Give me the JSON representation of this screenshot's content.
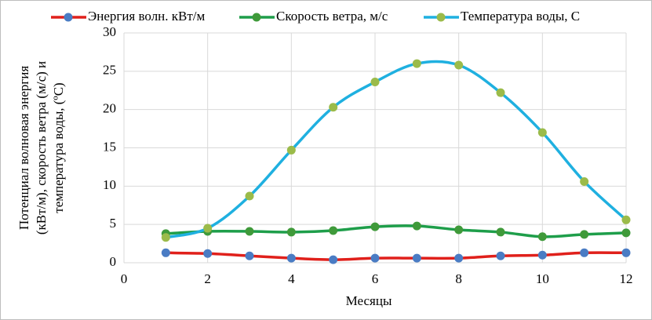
{
  "chart_data": {
    "type": "line",
    "x_label": "Месяцы",
    "y_label": [
      "Потенциал волновая энергия",
      "(кВт/м), скорость ветра (м/с) и",
      "температура воды, (ºС)"
    ],
    "x": [
      1,
      2,
      3,
      4,
      5,
      6,
      7,
      8,
      9,
      10,
      11,
      12
    ],
    "series": [
      {
        "name": "Энергия волн. кВт/м",
        "color": "#e0201b",
        "marker_color": "#4a7cc4",
        "values": [
          1.3,
          1.2,
          0.9,
          0.6,
          0.4,
          0.6,
          0.6,
          0.6,
          0.9,
          1.0,
          1.3,
          1.3
        ]
      },
      {
        "name": "Скорость ветра, м/с",
        "color": "#1e9e4a",
        "marker_color": "#3f9a3a",
        "values": [
          3.8,
          4.1,
          4.1,
          4.0,
          4.2,
          4.7,
          4.8,
          4.3,
          4.0,
          3.4,
          3.7,
          3.9
        ]
      },
      {
        "name": "Температура воды, С",
        "color": "#1fb0e0",
        "marker_color": "#9bbb4a",
        "values": [
          3.3,
          4.5,
          8.7,
          14.7,
          20.3,
          23.6,
          26.0,
          25.8,
          22.2,
          17.0,
          10.6,
          5.6
        ]
      }
    ],
    "xlim": [
      0,
      12
    ],
    "xticks": [
      0,
      2,
      4,
      6,
      8,
      10,
      12
    ],
    "ylim": [
      0,
      30
    ],
    "yticks": [
      0,
      5,
      10,
      15,
      20,
      25,
      30
    ],
    "grid": true,
    "smooth": true,
    "legend": "top"
  }
}
